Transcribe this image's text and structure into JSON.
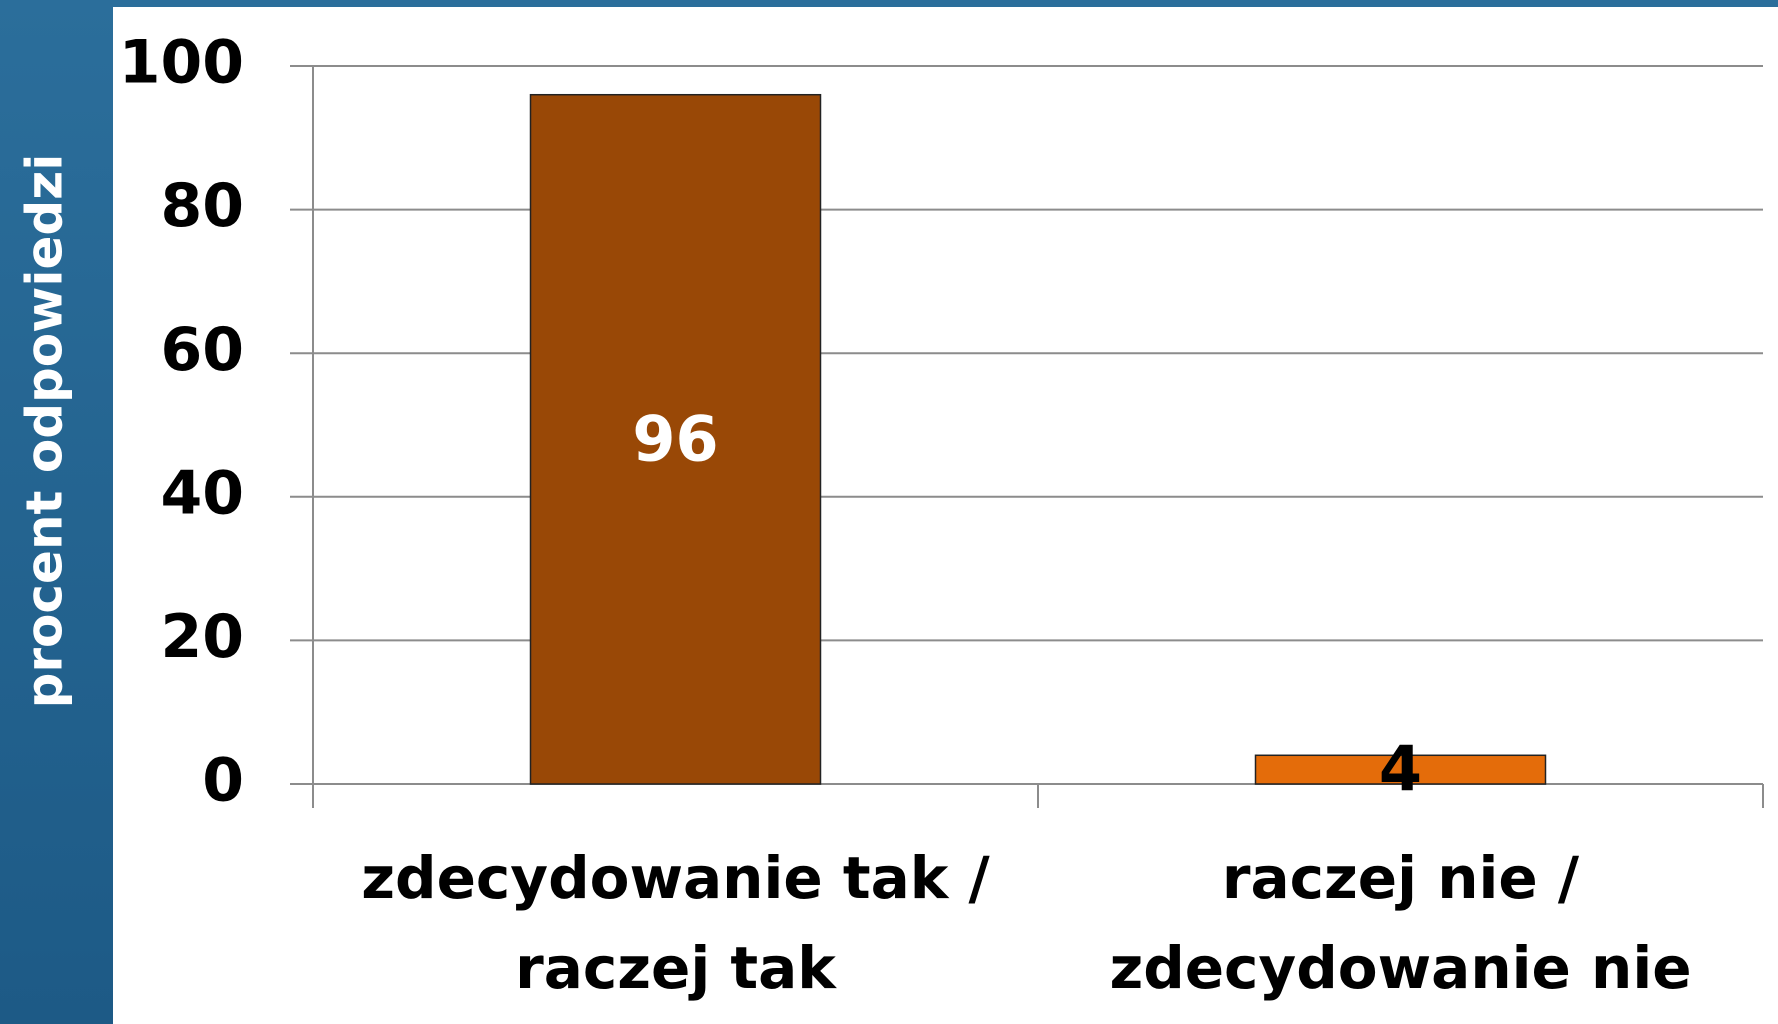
{
  "chart_data": {
    "type": "bar",
    "y_axis_label": "procent odpowiedzi",
    "categories": [
      [
        "zdecydowanie tak /",
        "raczej tak"
      ],
      [
        "raczej nie /",
        "zdecydowanie nie"
      ]
    ],
    "values": [
      96,
      4
    ],
    "colors": [
      "#994806",
      "#e46c0a"
    ],
    "value_label_colors": [
      "#ffffff",
      "#000000"
    ],
    "ylim": [
      0,
      100
    ],
    "yticks": [
      0,
      20,
      40,
      60,
      80,
      100
    ],
    "grid": true
  }
}
